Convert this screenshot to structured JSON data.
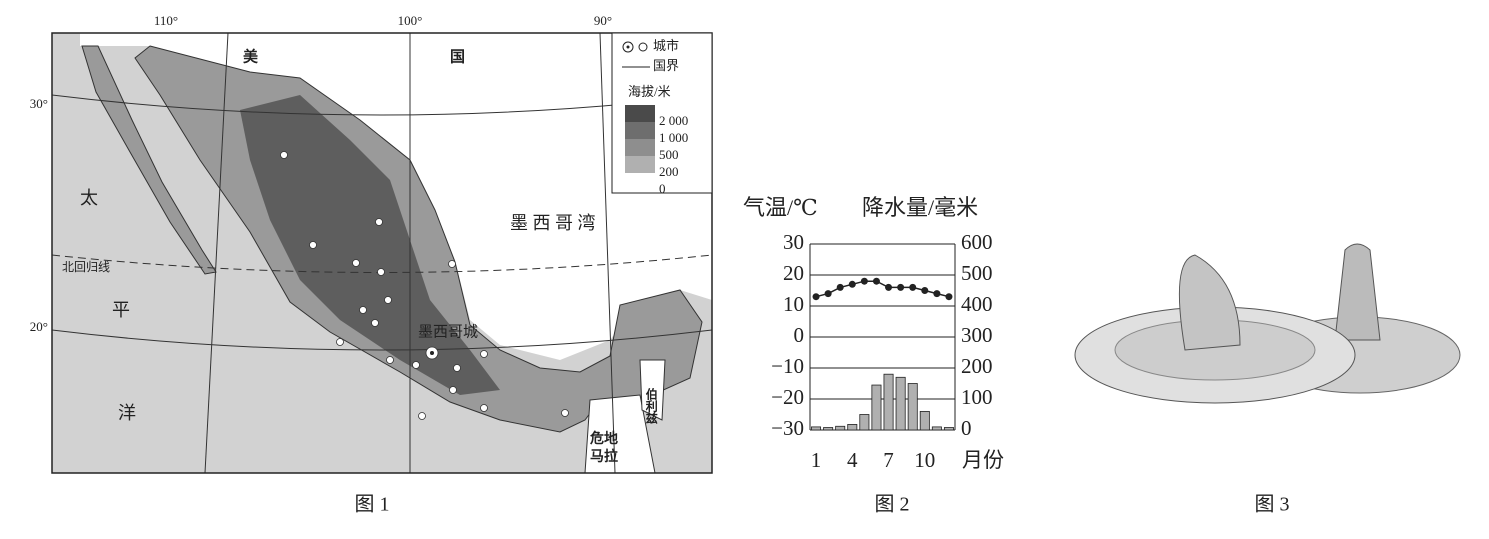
{
  "figure1": {
    "caption": "图 1",
    "longitudes": [
      "110°",
      "100°",
      "90°"
    ],
    "latitudes": [
      "30°",
      "20°"
    ],
    "legend": {
      "city": "城市",
      "border": "国界",
      "elevation_title": "海拔/米",
      "elevation_levels": [
        "2 000",
        "1 000",
        "500",
        "200",
        "0"
      ]
    },
    "labels": {
      "usa_1": "美",
      "usa_2": "国",
      "pacific_1": "太",
      "pacific_2": "平",
      "pacific_3": "洋",
      "tropic": "北回归线",
      "gulf": "墨 西 哥 湾",
      "capital": "墨西哥城",
      "guatemala_1": "危地",
      "guatemala_2": "马拉",
      "belize": "伯利兹"
    }
  },
  "chart_data": {
    "type": "climate",
    "caption": "图 2",
    "y_label": "气温/℃",
    "y2_label": "降水量/毫米",
    "x_label": "月份",
    "categories": [
      "1",
      null,
      null,
      "4",
      null,
      null,
      "7",
      null,
      null,
      "10",
      null,
      null
    ],
    "series": [
      {
        "name": "气温",
        "kind": "line",
        "color": "#222222",
        "values": [
          13,
          14,
          16,
          17,
          18,
          18,
          16,
          16,
          16,
          15,
          14,
          13
        ]
      },
      {
        "name": "降水量",
        "kind": "bar",
        "axis": "y2",
        "color": "#b0b0b0",
        "values": [
          10,
          8,
          12,
          18,
          50,
          145,
          180,
          170,
          150,
          60,
          10,
          8
        ]
      }
    ],
    "ylim": [
      -30,
      30
    ],
    "yticks": [
      {
        "value": -30,
        "label": "−30"
      },
      {
        "value": -20,
        "label": "−20"
      },
      {
        "value": -10,
        "label": "−10"
      },
      0,
      10,
      20,
      30
    ],
    "y2lim": [
      0,
      600
    ],
    "y2ticks": [
      0,
      100,
      200,
      300,
      400,
      500,
      600
    ],
    "grid": true
  },
  "figure3": {
    "caption": "图 3"
  }
}
